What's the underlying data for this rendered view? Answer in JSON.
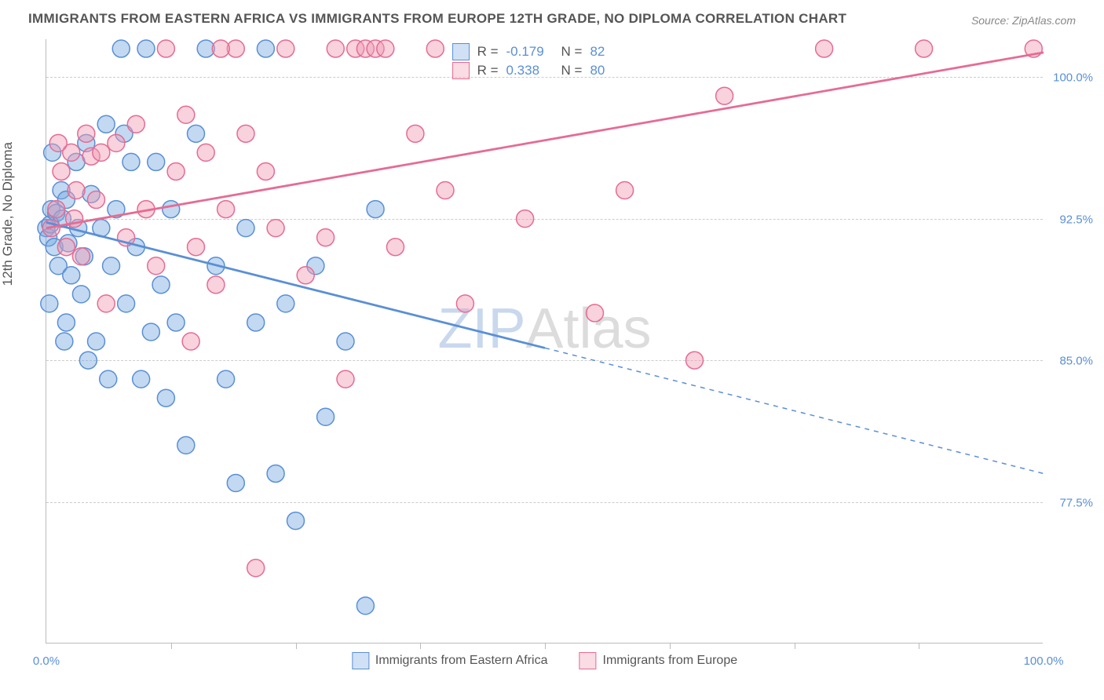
{
  "title": "IMMIGRANTS FROM EASTERN AFRICA VS IMMIGRANTS FROM EUROPE 12TH GRADE, NO DIPLOMA CORRELATION CHART",
  "source": "Source: ZipAtlas.com",
  "ylabel": "12th Grade, No Diploma",
  "watermark": {
    "zip": "ZIP",
    "atlas": "Atlas"
  },
  "chart": {
    "type": "scatter-correlation",
    "plot_bg": "#ffffff",
    "grid_color": "#cccccc",
    "axis_color": "#bbbbbb",
    "label_color": "#5a8fd6",
    "xlim": [
      0,
      100
    ],
    "ylim": [
      70,
      102
    ],
    "yticks": [
      {
        "v": 77.5,
        "label": "77.5%"
      },
      {
        "v": 85.0,
        "label": "85.0%"
      },
      {
        "v": 92.5,
        "label": "92.5%"
      },
      {
        "v": 100.0,
        "label": "100.0%"
      }
    ],
    "xticks": [
      {
        "v": 0,
        "label": "0.0%"
      },
      {
        "v": 12.5,
        "label": ""
      },
      {
        "v": 25,
        "label": ""
      },
      {
        "v": 37.5,
        "label": ""
      },
      {
        "v": 50,
        "label": ""
      },
      {
        "v": 62.5,
        "label": ""
      },
      {
        "v": 75,
        "label": ""
      },
      {
        "v": 87.5,
        "label": ""
      },
      {
        "v": 100,
        "label": "100.0%"
      }
    ],
    "series": [
      {
        "name": "Immigrants from Eastern Africa",
        "color_fill": "rgba(120,170,225,0.45)",
        "color_stroke": "#5a8fd6",
        "swatch_fill": "rgba(120,170,225,0.35)",
        "swatch_stroke": "#5a8fd6",
        "R": "-0.179",
        "N": "82",
        "trend": {
          "x1": 0,
          "y1": 92.3,
          "x2": 100,
          "y2": 79.0,
          "solid_until_x": 50
        },
        "points": [
          [
            0,
            92
          ],
          [
            0.2,
            91.5
          ],
          [
            0.5,
            93
          ],
          [
            0.4,
            92.2
          ],
          [
            0.8,
            91
          ],
          [
            1,
            92.8
          ],
          [
            1.2,
            90
          ],
          [
            1.5,
            94
          ],
          [
            1.6,
            92.5
          ],
          [
            2,
            93.5
          ],
          [
            2.2,
            91.2
          ],
          [
            2.5,
            89.5
          ],
          [
            3,
            95.5
          ],
          [
            3.2,
            92
          ],
          [
            3.5,
            88.5
          ],
          [
            4,
            96.5
          ],
          [
            4.5,
            93.8
          ],
          [
            5,
            86
          ],
          [
            5.5,
            92
          ],
          [
            6,
            97.5
          ],
          [
            6.5,
            90
          ],
          [
            7,
            93
          ],
          [
            7.5,
            101.5
          ],
          [
            8,
            88
          ],
          [
            8.5,
            95.5
          ],
          [
            9,
            91
          ],
          [
            10,
            101.5
          ],
          [
            10.5,
            86.5
          ],
          [
            11,
            95.5
          ],
          [
            12,
            83
          ],
          [
            12.5,
            93
          ],
          [
            13,
            87
          ],
          [
            14,
            80.5
          ],
          [
            15,
            97
          ],
          [
            16,
            101.5
          ],
          [
            17,
            90
          ],
          [
            18,
            84
          ],
          [
            19,
            78.5
          ],
          [
            20,
            92
          ],
          [
            21,
            87
          ],
          [
            22,
            101.5
          ],
          [
            23,
            79
          ],
          [
            24,
            88
          ],
          [
            25,
            76.5
          ],
          [
            27,
            90
          ],
          [
            28,
            82
          ],
          [
            30,
            86
          ],
          [
            32,
            72
          ],
          [
            33,
            93
          ],
          [
            2,
            87
          ],
          [
            3.8,
            90.5
          ],
          [
            4.2,
            85
          ],
          [
            6.2,
            84
          ],
          [
            7.8,
            97
          ],
          [
            9.5,
            84
          ],
          [
            11.5,
            89
          ],
          [
            0.3,
            88
          ],
          [
            1.8,
            86
          ],
          [
            0.6,
            96
          ]
        ]
      },
      {
        "name": "Immigrants from Europe",
        "color_fill": "rgba(240,155,180,0.45)",
        "color_stroke": "#e66b93",
        "swatch_fill": "rgba(240,155,180,0.35)",
        "swatch_stroke": "#e66b93",
        "R": "0.338",
        "N": "80",
        "trend": {
          "x1": 0,
          "y1": 92.0,
          "x2": 100,
          "y2": 101.3,
          "solid_until_x": 100
        },
        "points": [
          [
            0.5,
            92
          ],
          [
            1,
            93
          ],
          [
            1.5,
            95
          ],
          [
            2,
            91
          ],
          [
            2.5,
            96
          ],
          [
            3,
            94
          ],
          [
            3.5,
            90.5
          ],
          [
            4,
            97
          ],
          [
            4.5,
            95.8
          ],
          [
            5,
            93.5
          ],
          [
            6,
            88
          ],
          [
            7,
            96.5
          ],
          [
            8,
            91.5
          ],
          [
            9,
            97.5
          ],
          [
            10,
            93
          ],
          [
            11,
            90
          ],
          [
            12,
            101.5
          ],
          [
            13,
            95
          ],
          [
            14,
            98
          ],
          [
            15,
            91
          ],
          [
            16,
            96
          ],
          [
            17,
            89
          ],
          [
            18,
            93
          ],
          [
            19,
            101.5
          ],
          [
            20,
            97
          ],
          [
            21,
            74
          ],
          [
            22,
            95
          ],
          [
            23,
            92
          ],
          [
            24,
            101.5
          ],
          [
            26,
            89.5
          ],
          [
            28,
            91.5
          ],
          [
            29,
            101.5
          ],
          [
            30,
            84
          ],
          [
            31,
            101.5
          ],
          [
            32,
            101.5
          ],
          [
            33,
            101.5
          ],
          [
            34,
            101.5
          ],
          [
            35,
            91
          ],
          [
            37,
            97
          ],
          [
            39,
            101.5
          ],
          [
            40,
            94
          ],
          [
            42,
            88
          ],
          [
            48,
            92.5
          ],
          [
            55,
            87.5
          ],
          [
            58,
            94
          ],
          [
            65,
            85
          ],
          [
            68,
            99
          ],
          [
            78,
            101.5
          ],
          [
            88,
            101.5
          ],
          [
            99,
            101.5
          ],
          [
            1.2,
            96.5
          ],
          [
            2.8,
            92.5
          ],
          [
            5.5,
            96
          ],
          [
            14.5,
            86
          ],
          [
            17.5,
            101.5
          ]
        ]
      }
    ],
    "legend_position": "bottom",
    "marker_radius": 11,
    "marker_stroke_width": 1.5,
    "trend_stroke_width": 2.8
  }
}
